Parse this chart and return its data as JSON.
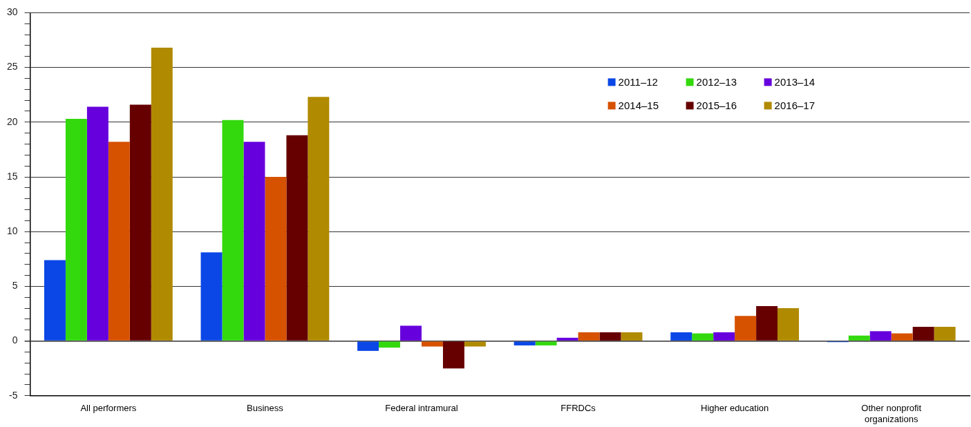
{
  "chart_data": {
    "type": "bar",
    "categories": [
      "All performers",
      "Business",
      "Federal intramural",
      "FFRDCs",
      "Higher education",
      "Other nonprofit organizations"
    ],
    "series": [
      {
        "name": "2011–12",
        "color": "#0a47e6",
        "values": [
          7.4,
          8.1,
          -0.9,
          -0.4,
          0.8,
          -0.1
        ]
      },
      {
        "name": "2012–13",
        "color": "#33d90d",
        "values": [
          20.3,
          20.2,
          -0.6,
          -0.4,
          0.7,
          0.5
        ]
      },
      {
        "name": "2013–14",
        "color": "#6600dd",
        "values": [
          21.4,
          18.2,
          1.4,
          0.3,
          0.8,
          0.9
        ]
      },
      {
        "name": "2014–15",
        "color": "#d65100",
        "values": [
          18.2,
          15.0,
          -0.5,
          0.8,
          2.3,
          0.7
        ]
      },
      {
        "name": "2015–16",
        "color": "#660000",
        "values": [
          21.6,
          18.8,
          -2.5,
          0.8,
          3.2,
          1.3
        ]
      },
      {
        "name": "2016–17",
        "color": "#b08a00",
        "values": [
          26.8,
          22.3,
          -0.5,
          0.8,
          3.0,
          1.3
        ]
      }
    ],
    "ylim": [
      -5,
      30
    ],
    "yticks": [
      -5,
      {
        "value": -4,
        "label": null
      },
      {
        "value": -3,
        "label": null
      },
      {
        "value": -2,
        "label": null
      },
      {
        "value": -1,
        "label": null
      },
      0,
      {
        "value": 1,
        "label": null
      },
      {
        "value": 2,
        "label": null
      },
      {
        "value": 3,
        "label": null
      },
      {
        "value": 4,
        "label": null
      },
      5,
      {
        "value": 6,
        "label": null
      },
      {
        "value": 7,
        "label": null
      },
      {
        "value": 8,
        "label": null
      },
      {
        "value": 9,
        "label": null
      },
      10,
      {
        "value": 11,
        "label": null
      },
      {
        "value": 12,
        "label": null
      },
      {
        "value": 13,
        "label": null
      },
      {
        "value": 14,
        "label": null
      },
      15,
      {
        "value": 16,
        "label": null
      },
      {
        "value": 17,
        "label": null
      },
      {
        "value": 18,
        "label": null
      },
      {
        "value": 19,
        "label": null
      },
      20,
      {
        "value": 21,
        "label": null
      },
      {
        "value": 22,
        "label": null
      },
      {
        "value": 23,
        "label": null
      },
      {
        "value": 24,
        "label": null
      },
      25,
      {
        "value": 26,
        "label": null
      },
      {
        "value": 27,
        "label": null
      },
      {
        "value": 28,
        "label": null
      },
      {
        "value": 29,
        "label": null
      },
      30
    ],
    "grid": "y",
    "legend": "top right"
  }
}
